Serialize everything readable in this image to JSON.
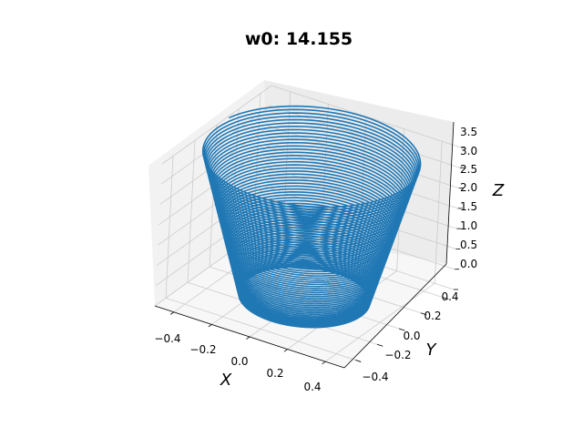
{
  "chart_data": {
    "type": "line",
    "projection": "3d",
    "title": "w0: 14.155",
    "xlabel": "X",
    "ylabel": "Y",
    "zlabel": "Z",
    "xlim": [
      -0.5,
      0.5
    ],
    "ylim": [
      -0.5,
      0.5
    ],
    "zlim": [
      0.0,
      3.5
    ],
    "x_ticks": [
      "−0.4",
      "−0.2",
      "0.0",
      "0.2",
      "0.4"
    ],
    "y_ticks": [
      "−0.4",
      "−0.2",
      "0.0",
      "0.2",
      "0.4"
    ],
    "z_ticks": [
      "0.0",
      "0.5",
      "1.0",
      "1.5",
      "2.0",
      "2.5",
      "3.0",
      "3.5"
    ],
    "grid": true,
    "series": [
      {
        "shape": "conical spiral",
        "radius_at_top": 0.5,
        "radius_at_bottom": 0.3,
        "z_start": 3.5,
        "z_end": 0.0,
        "x": [
          0.456,
          0.319,
          0.007,
          -0.276,
          -0.389,
          -0.282,
          -0.022,
          0.251,
          0.363,
          0.268,
          0.018,
          -0.236,
          -0.345,
          -0.262,
          -0.025,
          0.226,
          0.331,
          0.251,
          0.019,
          -0.223,
          -0.322,
          -0.245,
          -0.02,
          0.216,
          0.314,
          0.242,
          0.021,
          -0.211,
          -0.309
        ],
        "y": [
          0.14,
          -0.312,
          -0.401,
          -0.264,
          0.047,
          0.259,
          0.37,
          0.249,
          -0.032,
          -0.244,
          -0.348,
          -0.233,
          0.033,
          0.233,
          0.333,
          0.228,
          -0.036,
          -0.226,
          -0.325,
          -0.22,
          0.034,
          0.22,
          0.318,
          0.218,
          -0.034,
          -0.216,
          -0.309,
          -0.214,
          0.034
        ],
        "z": [
          3.4,
          3.0,
          2.62,
          2.28,
          1.98,
          1.72,
          1.5,
          1.3,
          1.13,
          0.98,
          0.85,
          0.74,
          0.64,
          0.55,
          0.47,
          0.4,
          0.34,
          0.29,
          0.24,
          0.2,
          0.16,
          0.13,
          0.1,
          0.08,
          0.06,
          0.04,
          0.03,
          0.02,
          0.01
        ]
      }
    ]
  },
  "colors": {
    "line": "#1f77b4",
    "pane_left": "#f2f2f2",
    "pane_right": "#ececec",
    "pane_floor": "#f7f7f7",
    "grid": "#cccccc"
  }
}
